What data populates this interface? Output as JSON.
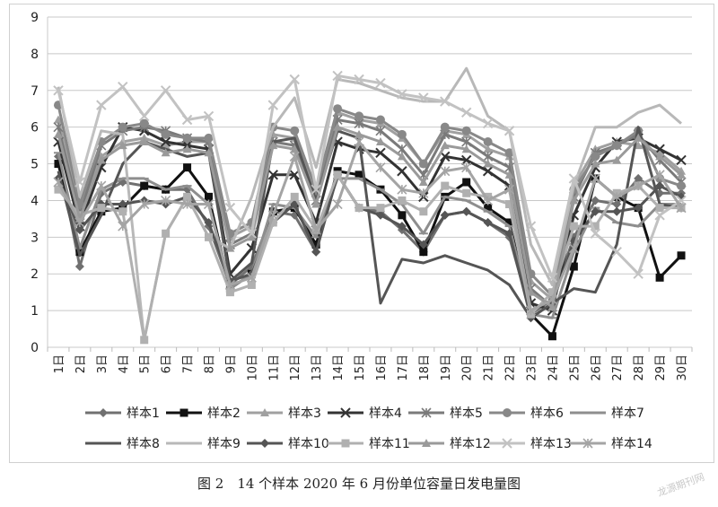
{
  "caption": "图 2　14 个样本 2020 年 6 月份单位容量日发电量图",
  "watermark": "龙源期刊网",
  "chart_data": {
    "type": "line",
    "title": "",
    "xlabel": "",
    "ylabel": "",
    "ylim": [
      0,
      9
    ],
    "yticks": [
      0,
      1,
      2,
      3,
      4,
      5,
      6,
      7,
      8,
      9
    ],
    "grid": "horizontal",
    "legend_position": "bottom",
    "categories": [
      "1日",
      "2日",
      "3日",
      "4日",
      "5日",
      "6日",
      "7日",
      "8日",
      "9日",
      "10日",
      "11日",
      "12日",
      "13日",
      "14日",
      "15日",
      "16日",
      "17日",
      "18日",
      "19日",
      "20日",
      "21日",
      "22日",
      "23日",
      "24日",
      "25日",
      "26日",
      "27日",
      "28日",
      "29日",
      "30日"
    ],
    "series": [
      {
        "name": "样本1",
        "color": "#707070",
        "marker": "diamond",
        "values": [
          5.2,
          2.2,
          4.2,
          4.5,
          4.4,
          4.3,
          4.3,
          3.3,
          1.7,
          2.2,
          3.7,
          3.6,
          2.6,
          4.7,
          3.8,
          3.7,
          3.2,
          2.6,
          3.6,
          3.7,
          3.4,
          3.0,
          0.9,
          1.3,
          3.0,
          4.0,
          3.9,
          4.6,
          4.2,
          4.2
        ]
      },
      {
        "name": "样本2",
        "color": "#111111",
        "marker": "square",
        "values": [
          5.0,
          2.6,
          3.7,
          3.8,
          4.4,
          4.3,
          4.9,
          4.1,
          1.6,
          2.0,
          3.7,
          3.8,
          2.8,
          4.8,
          4.7,
          4.3,
          3.6,
          2.6,
          4.1,
          4.5,
          3.8,
          3.4,
          0.9,
          0.3,
          2.2,
          4.6,
          4.1,
          3.8,
          1.9,
          2.5
        ]
      },
      {
        "name": "样本3",
        "color": "#a0a0a0",
        "marker": "triangle",
        "values": [
          6.2,
          3.8,
          5.2,
          5.6,
          5.7,
          5.5,
          5.6,
          5.6,
          3.0,
          3.3,
          5.8,
          5.7,
          4.2,
          6.4,
          6.2,
          6.1,
          5.7,
          5.0,
          5.9,
          5.8,
          5.4,
          5.2,
          1.8,
          1.3,
          4.4,
          5.4,
          5.6,
          5.5,
          5.3,
          4.8
        ]
      },
      {
        "name": "样本4",
        "color": "#333333",
        "marker": "x",
        "values": [
          5.6,
          3.3,
          4.9,
          6.0,
          5.9,
          5.6,
          5.5,
          5.4,
          2.0,
          2.7,
          4.7,
          4.7,
          3.4,
          5.6,
          5.4,
          5.3,
          4.8,
          4.1,
          5.2,
          5.1,
          4.8,
          4.4,
          1.2,
          1.0,
          3.6,
          4.9,
          5.6,
          5.7,
          5.4,
          5.1
        ]
      },
      {
        "name": "样本5",
        "color": "#7a7a7a",
        "marker": "star",
        "values": [
          6.0,
          3.6,
          5.5,
          5.9,
          6.0,
          5.9,
          5.7,
          5.6,
          2.8,
          3.1,
          5.6,
          5.5,
          4.0,
          6.2,
          6.1,
          5.9,
          5.4,
          4.7,
          5.8,
          5.6,
          5.2,
          4.9,
          1.6,
          1.1,
          4.1,
          5.3,
          5.5,
          5.8,
          5.1,
          4.5
        ]
      },
      {
        "name": "样本6",
        "color": "#888888",
        "marker": "circle",
        "values": [
          6.6,
          3.9,
          5.6,
          6.0,
          6.1,
          5.8,
          5.7,
          5.7,
          3.1,
          3.4,
          6.0,
          5.9,
          4.3,
          6.5,
          6.3,
          6.2,
          5.8,
          5.0,
          6.0,
          5.9,
          5.6,
          5.3,
          2.0,
          1.4,
          4.3,
          5.2,
          5.5,
          5.9,
          4.6,
          4.4
        ]
      },
      {
        "name": "样本7",
        "color": "#8e8e8e",
        "marker": "plus",
        "values": [
          5.3,
          2.7,
          4.3,
          4.6,
          4.6,
          4.3,
          4.4,
          3.9,
          1.6,
          2.0,
          3.9,
          3.8,
          3.0,
          4.6,
          4.6,
          4.3,
          3.9,
          3.1,
          4.1,
          4.0,
          3.7,
          3.3,
          0.9,
          0.8,
          2.6,
          3.8,
          3.4,
          3.3,
          3.9,
          3.9
        ]
      },
      {
        "name": "样本8",
        "color": "#555555",
        "marker": "none",
        "values": [
          4.8,
          2.5,
          3.6,
          5.0,
          5.6,
          5.4,
          5.2,
          5.3,
          1.8,
          2.3,
          5.6,
          5.7,
          4.0,
          5.9,
          5.7,
          1.2,
          2.4,
          2.3,
          2.5,
          2.3,
          2.1,
          1.7,
          0.8,
          1.2,
          1.6,
          1.5,
          2.8,
          6.0,
          3.9,
          3.8
        ]
      },
      {
        "name": "样本9",
        "color": "#b8b8b8",
        "marker": "none",
        "values": [
          7.1,
          4.1,
          5.9,
          5.8,
          0.2,
          3.1,
          4.1,
          3.0,
          2.7,
          4.1,
          6.0,
          6.8,
          4.9,
          7.3,
          7.2,
          7.0,
          6.8,
          6.7,
          6.7,
          7.6,
          6.3,
          5.9,
          2.8,
          1.7,
          4.4,
          6.0,
          6.0,
          6.4,
          6.6,
          6.1
        ]
      },
      {
        "name": "样本10",
        "color": "#555555",
        "marker": "diamond",
        "values": [
          4.6,
          3.2,
          3.9,
          3.9,
          4.0,
          3.9,
          4.1,
          3.4,
          1.8,
          2.0,
          3.4,
          3.9,
          2.6,
          4.7,
          3.8,
          3.6,
          3.3,
          2.8,
          3.6,
          3.7,
          3.4,
          3.1,
          0.8,
          1.2,
          2.9,
          3.7,
          3.7,
          3.8,
          4.4,
          4.1
        ]
      },
      {
        "name": "样本11",
        "color": "#b0b0b0",
        "marker": "square",
        "values": [
          4.3,
          3.6,
          3.8,
          3.7,
          0.2,
          3.1,
          4.1,
          3.0,
          1.5,
          1.7,
          3.4,
          4.1,
          3.2,
          4.7,
          3.8,
          3.8,
          4.0,
          3.7,
          4.4,
          4.2,
          4.1,
          3.9,
          0.9,
          1.5,
          3.3,
          3.3,
          4.2,
          4.4,
          3.8,
          3.8
        ]
      },
      {
        "name": "样本12",
        "color": "#9a9a9a",
        "marker": "triangle",
        "values": [
          5.8,
          3.5,
          5.1,
          5.5,
          5.6,
          5.3,
          5.4,
          5.3,
          2.7,
          3.0,
          5.5,
          5.4,
          3.9,
          6.0,
          5.8,
          5.6,
          5.2,
          4.5,
          5.5,
          5.4,
          5.0,
          4.7,
          1.5,
          1.1,
          4.0,
          5.0,
          5.1,
          5.7,
          5.2,
          4.7
        ]
      },
      {
        "name": "样本13",
        "color": "#c2c2c2",
        "marker": "x",
        "values": [
          7.0,
          4.5,
          6.6,
          7.1,
          6.3,
          7.0,
          6.2,
          6.3,
          3.8,
          3.1,
          6.6,
          7.3,
          4.3,
          7.4,
          7.3,
          7.2,
          6.9,
          6.8,
          6.7,
          6.4,
          6.1,
          5.9,
          3.3,
          1.9,
          4.6,
          3.1,
          2.6,
          2.0,
          3.6,
          4.0
        ]
      },
      {
        "name": "样本14",
        "color": "#a4a4a4",
        "marker": "star",
        "values": [
          4.5,
          3.4,
          4.4,
          3.3,
          3.9,
          4.0,
          3.9,
          3.9,
          1.7,
          1.9,
          3.6,
          5.2,
          3.2,
          3.9,
          5.6,
          4.9,
          4.3,
          4.2,
          4.8,
          4.9,
          4.0,
          4.3,
          1.0,
          1.3,
          2.7,
          4.6,
          4.1,
          4.4,
          4.7,
          3.8
        ]
      }
    ]
  }
}
